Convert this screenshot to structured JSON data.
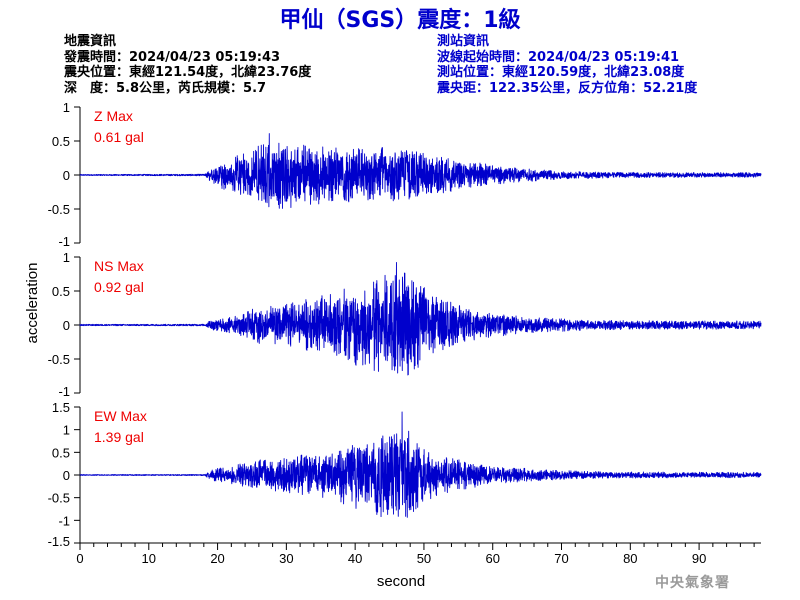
{
  "title": "甲仙（SGS）震度：1級",
  "event_info": [
    "地震資訊",
    "發震時間：2024/04/23 05:19:43",
    "震央位置：東經121.54度，北緯23.76度",
    "深　度：5.8公里，芮氏規模：5.7"
  ],
  "station_info": [
    "測站資訊",
    "波線起始時間：2024/04/23 05:19:41",
    "測站位置：東經120.59度，北緯23.08度",
    "震央距：122.35公里，反方位角：52.21度"
  ],
  "watermark": "中央氣象署",
  "chart_data": {
    "type": "line",
    "xlabel": "second",
    "ylabel": "acceleration",
    "xlim": [
      0,
      99
    ],
    "x_ticks": [
      0,
      10,
      20,
      30,
      40,
      50,
      60,
      70,
      80,
      90
    ],
    "line_color": "#0000cc",
    "label_color": "#ee0000",
    "panels": [
      {
        "name": "Z Max",
        "max_label": "0.61 gal",
        "ylim": [
          -1,
          1
        ],
        "y_ticks": [
          1,
          0.5,
          0,
          -0.5,
          -1
        ],
        "y_tick_labels": [
          "1",
          "0.5",
          "0",
          "-0.5",
          "-1"
        ],
        "onset": 18.5,
        "peak": 0.61,
        "peak_time": 27.5,
        "envelope": [
          [
            0,
            0.008
          ],
          [
            18.2,
            0.012
          ],
          [
            18.8,
            0.1
          ],
          [
            21,
            0.22
          ],
          [
            25,
            0.38
          ],
          [
            27.5,
            0.55
          ],
          [
            33,
            0.45
          ],
          [
            40,
            0.4
          ],
          [
            47,
            0.42
          ],
          [
            52,
            0.28
          ],
          [
            57,
            0.2
          ],
          [
            62,
            0.12
          ],
          [
            70,
            0.06
          ],
          [
            80,
            0.04
          ],
          [
            99,
            0.035
          ]
        ]
      },
      {
        "name": "NS Max",
        "max_label": "0.92 gal",
        "ylim": [
          -1,
          1
        ],
        "y_ticks": [
          1,
          0.5,
          0,
          -0.5,
          -1
        ],
        "y_tick_labels": [
          "1",
          "0.5",
          "0",
          "-0.5",
          "-1"
        ],
        "onset": 18.5,
        "peak": 0.92,
        "peak_time": 46.0,
        "envelope": [
          [
            0,
            0.01
          ],
          [
            18.2,
            0.012
          ],
          [
            19,
            0.08
          ],
          [
            22,
            0.14
          ],
          [
            26,
            0.3
          ],
          [
            30,
            0.32
          ],
          [
            36,
            0.45
          ],
          [
            40,
            0.6
          ],
          [
            44,
            0.75
          ],
          [
            46,
            0.85
          ],
          [
            49,
            0.68
          ],
          [
            53,
            0.38
          ],
          [
            58,
            0.22
          ],
          [
            65,
            0.12
          ],
          [
            75,
            0.07
          ],
          [
            99,
            0.06
          ]
        ]
      },
      {
        "name": "EW Max",
        "max_label": "1.39 gal",
        "ylim": [
          -1.5,
          1.5
        ],
        "y_ticks": [
          1.5,
          1,
          0.5,
          0,
          -0.5,
          -1,
          -1.5
        ],
        "y_tick_labels": [
          "1.5",
          "1",
          "0.5",
          "0",
          "-0.5",
          "-1",
          "-1.5"
        ],
        "onset": 18.5,
        "peak": 1.39,
        "peak_time": 46.8,
        "envelope": [
          [
            0,
            0.01
          ],
          [
            18.2,
            0.012
          ],
          [
            19,
            0.12
          ],
          [
            22,
            0.2
          ],
          [
            26,
            0.35
          ],
          [
            30,
            0.42
          ],
          [
            35,
            0.48
          ],
          [
            40,
            0.75
          ],
          [
            45,
            1.0
          ],
          [
            47,
            1.1
          ],
          [
            50,
            0.62
          ],
          [
            55,
            0.35
          ],
          [
            60,
            0.2
          ],
          [
            70,
            0.1
          ],
          [
            80,
            0.07
          ],
          [
            99,
            0.06
          ]
        ]
      }
    ]
  }
}
